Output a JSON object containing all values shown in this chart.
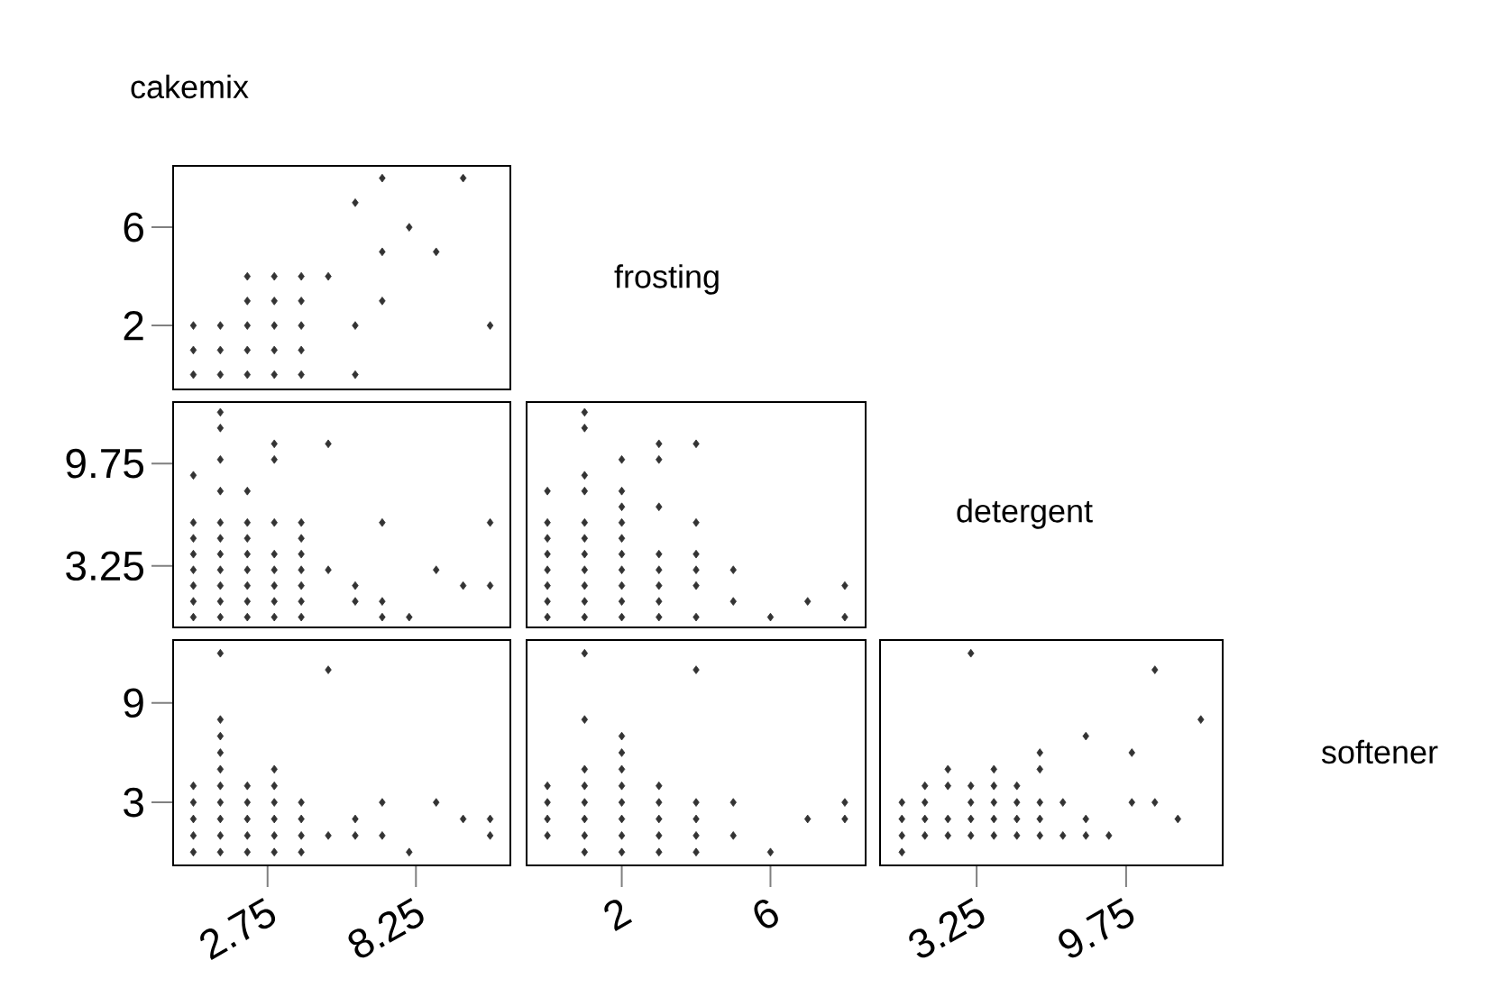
{
  "chart_data": [
    {
      "type": "scatter",
      "xlim": [
        -0.75,
        11.75
      ],
      "ylim": [
        -0.6,
        8.5
      ],
      "xticks": [
        2.75,
        8.25
      ],
      "yticks": [
        2,
        6
      ],
      "tick_labels": "y",
      "marker": "diamond",
      "series": [
        {
          "color": "#333333",
          "x": [
            7,
            10,
            6,
            8,
            7,
            9,
            2,
            3,
            4,
            5,
            2,
            3,
            4,
            7,
            0,
            1,
            2,
            3,
            4,
            6,
            11,
            0,
            1,
            2,
            3,
            4,
            0,
            1,
            2,
            3,
            4,
            6
          ],
          "values": [
            8,
            8,
            7,
            6,
            5,
            5,
            4,
            4,
            4,
            4,
            3,
            3,
            3,
            3,
            2,
            2,
            2,
            2,
            2,
            2,
            2,
            1,
            1,
            1,
            1,
            1,
            0,
            0,
            0,
            0,
            0,
            0
          ]
        }
      ]
    },
    {
      "type": "scatter",
      "xlim": [
        -0.75,
        11.75
      ],
      "ylim": [
        -0.65,
        13.65
      ],
      "xticks": [
        2.75,
        8.25
      ],
      "yticks": [
        3.25,
        9.75
      ],
      "tick_labels": "y",
      "marker": "diamond",
      "series": [
        {
          "color": "#333333",
          "x": [
            1,
            1,
            3,
            5,
            1,
            3,
            0,
            1,
            2,
            0,
            1,
            2,
            3,
            4,
            7,
            11,
            0,
            1,
            2,
            4,
            0,
            1,
            2,
            3,
            4,
            0,
            1,
            2,
            3,
            4,
            5,
            9,
            0,
            1,
            2,
            3,
            4,
            6,
            10,
            11,
            0,
            1,
            2,
            3,
            4,
            6,
            7,
            0,
            1,
            2,
            3,
            4,
            7,
            8
          ],
          "values": [
            13,
            12,
            11,
            11,
            10,
            10,
            9,
            8,
            8,
            6,
            6,
            6,
            6,
            6,
            6,
            6,
            5,
            5,
            5,
            5,
            4,
            4,
            4,
            4,
            4,
            3,
            3,
            3,
            3,
            3,
            3,
            3,
            2,
            2,
            2,
            2,
            2,
            2,
            2,
            2,
            1,
            1,
            1,
            1,
            1,
            1,
            1,
            0,
            0,
            0,
            0,
            0,
            0,
            0
          ]
        }
      ]
    },
    {
      "type": "scatter",
      "xlim": [
        -0.56,
        8.56
      ],
      "ylim": [
        -0.65,
        13.65
      ],
      "xticks": [
        2,
        6
      ],
      "yticks": [
        3.25,
        9.75
      ],
      "tick_labels": false,
      "marker": "diamond",
      "series": [
        {
          "color": "#333333",
          "x": [
            1,
            1,
            3,
            4,
            2,
            3,
            1,
            0,
            1,
            2,
            2,
            3,
            0,
            1,
            2,
            4,
            0,
            1,
            2,
            0,
            1,
            2,
            3,
            4,
            0,
            1,
            2,
            3,
            4,
            5,
            0,
            1,
            2,
            3,
            4,
            8,
            0,
            1,
            2,
            3,
            5,
            7,
            0,
            1,
            2,
            3,
            4,
            6,
            8
          ],
          "values": [
            13,
            12,
            11,
            11,
            10,
            10,
            9,
            8,
            8,
            8,
            7,
            7,
            6,
            6,
            6,
            6,
            5,
            5,
            5,
            4,
            4,
            4,
            4,
            4,
            3,
            3,
            3,
            3,
            3,
            3,
            2,
            2,
            2,
            2,
            2,
            2,
            1,
            1,
            1,
            1,
            1,
            1,
            0,
            0,
            0,
            0,
            0,
            0,
            0
          ]
        }
      ]
    },
    {
      "type": "scatter",
      "xlim": [
        -0.75,
        11.75
      ],
      "ylim": [
        -0.8,
        12.8
      ],
      "xticks": [
        2.75,
        8.25
      ],
      "yticks": [
        3,
        9
      ],
      "marker": "diamond",
      "series": [
        {
          "color": "#333333",
          "x": [
            1,
            5,
            1,
            1,
            1,
            1,
            3,
            0,
            1,
            2,
            3,
            0,
            1,
            2,
            3,
            4,
            7,
            9,
            0,
            1,
            2,
            3,
            4,
            6,
            10,
            11,
            0,
            1,
            2,
            3,
            4,
            5,
            6,
            7,
            11,
            0,
            1,
            2,
            3,
            4,
            8
          ],
          "values": [
            12,
            11,
            8,
            7,
            6,
            5,
            5,
            4,
            4,
            4,
            4,
            3,
            3,
            3,
            3,
            3,
            3,
            3,
            2,
            2,
            2,
            2,
            2,
            2,
            2,
            2,
            1,
            1,
            1,
            1,
            1,
            1,
            1,
            1,
            1,
            0,
            0,
            0,
            0,
            0,
            0
          ]
        }
      ]
    },
    {
      "type": "scatter",
      "xlim": [
        -0.56,
        8.56
      ],
      "ylim": [
        -0.8,
        12.8
      ],
      "xticks": [
        2,
        6
      ],
      "yticks": [
        3,
        9
      ],
      "tick_labels": "x",
      "marker": "diamond",
      "series": [
        {
          "color": "#333333",
          "x": [
            1,
            4,
            1,
            2,
            2,
            1,
            2,
            0,
            1,
            2,
            3,
            0,
            1,
            2,
            3,
            4,
            5,
            8,
            0,
            1,
            2,
            3,
            4,
            7,
            8,
            0,
            1,
            2,
            3,
            4,
            5,
            1,
            2,
            3,
            4,
            6
          ],
          "values": [
            12,
            11,
            8,
            7,
            6,
            5,
            5,
            4,
            4,
            4,
            4,
            3,
            3,
            3,
            3,
            3,
            3,
            3,
            2,
            2,
            2,
            2,
            2,
            2,
            2,
            1,
            1,
            1,
            1,
            1,
            1,
            0,
            0,
            0,
            0,
            0
          ]
        }
      ]
    },
    {
      "type": "scatter",
      "xlim": [
        -0.95,
        13.95
      ],
      "ylim": [
        -0.8,
        12.8
      ],
      "xticks": [
        3.25,
        9.75
      ],
      "yticks": [
        3,
        9
      ],
      "tick_labels": "x",
      "marker": "diamond",
      "series": [
        {
          "color": "#333333",
          "x": [
            3,
            11,
            13,
            8,
            6,
            10,
            2,
            4,
            6,
            1,
            2,
            3,
            4,
            5,
            0,
            1,
            3,
            4,
            5,
            6,
            7,
            10,
            11,
            0,
            1,
            2,
            3,
            4,
            5,
            6,
            8,
            12,
            0,
            1,
            2,
            3,
            4,
            5,
            6,
            7,
            8,
            9,
            0
          ],
          "values": [
            12,
            11,
            8,
            7,
            6,
            6,
            5,
            5,
            5,
            4,
            4,
            4,
            4,
            4,
            3,
            3,
            3,
            3,
            3,
            3,
            3,
            3,
            3,
            2,
            2,
            2,
            2,
            2,
            2,
            2,
            2,
            2,
            1,
            1,
            1,
            1,
            1,
            1,
            1,
            1,
            1,
            1,
            0
          ]
        }
      ]
    },
    {
      "type": "other",
      "annotations": [
        "cakemix",
        "frosting",
        "detergent",
        "softener"
      ]
    }
  ]
}
